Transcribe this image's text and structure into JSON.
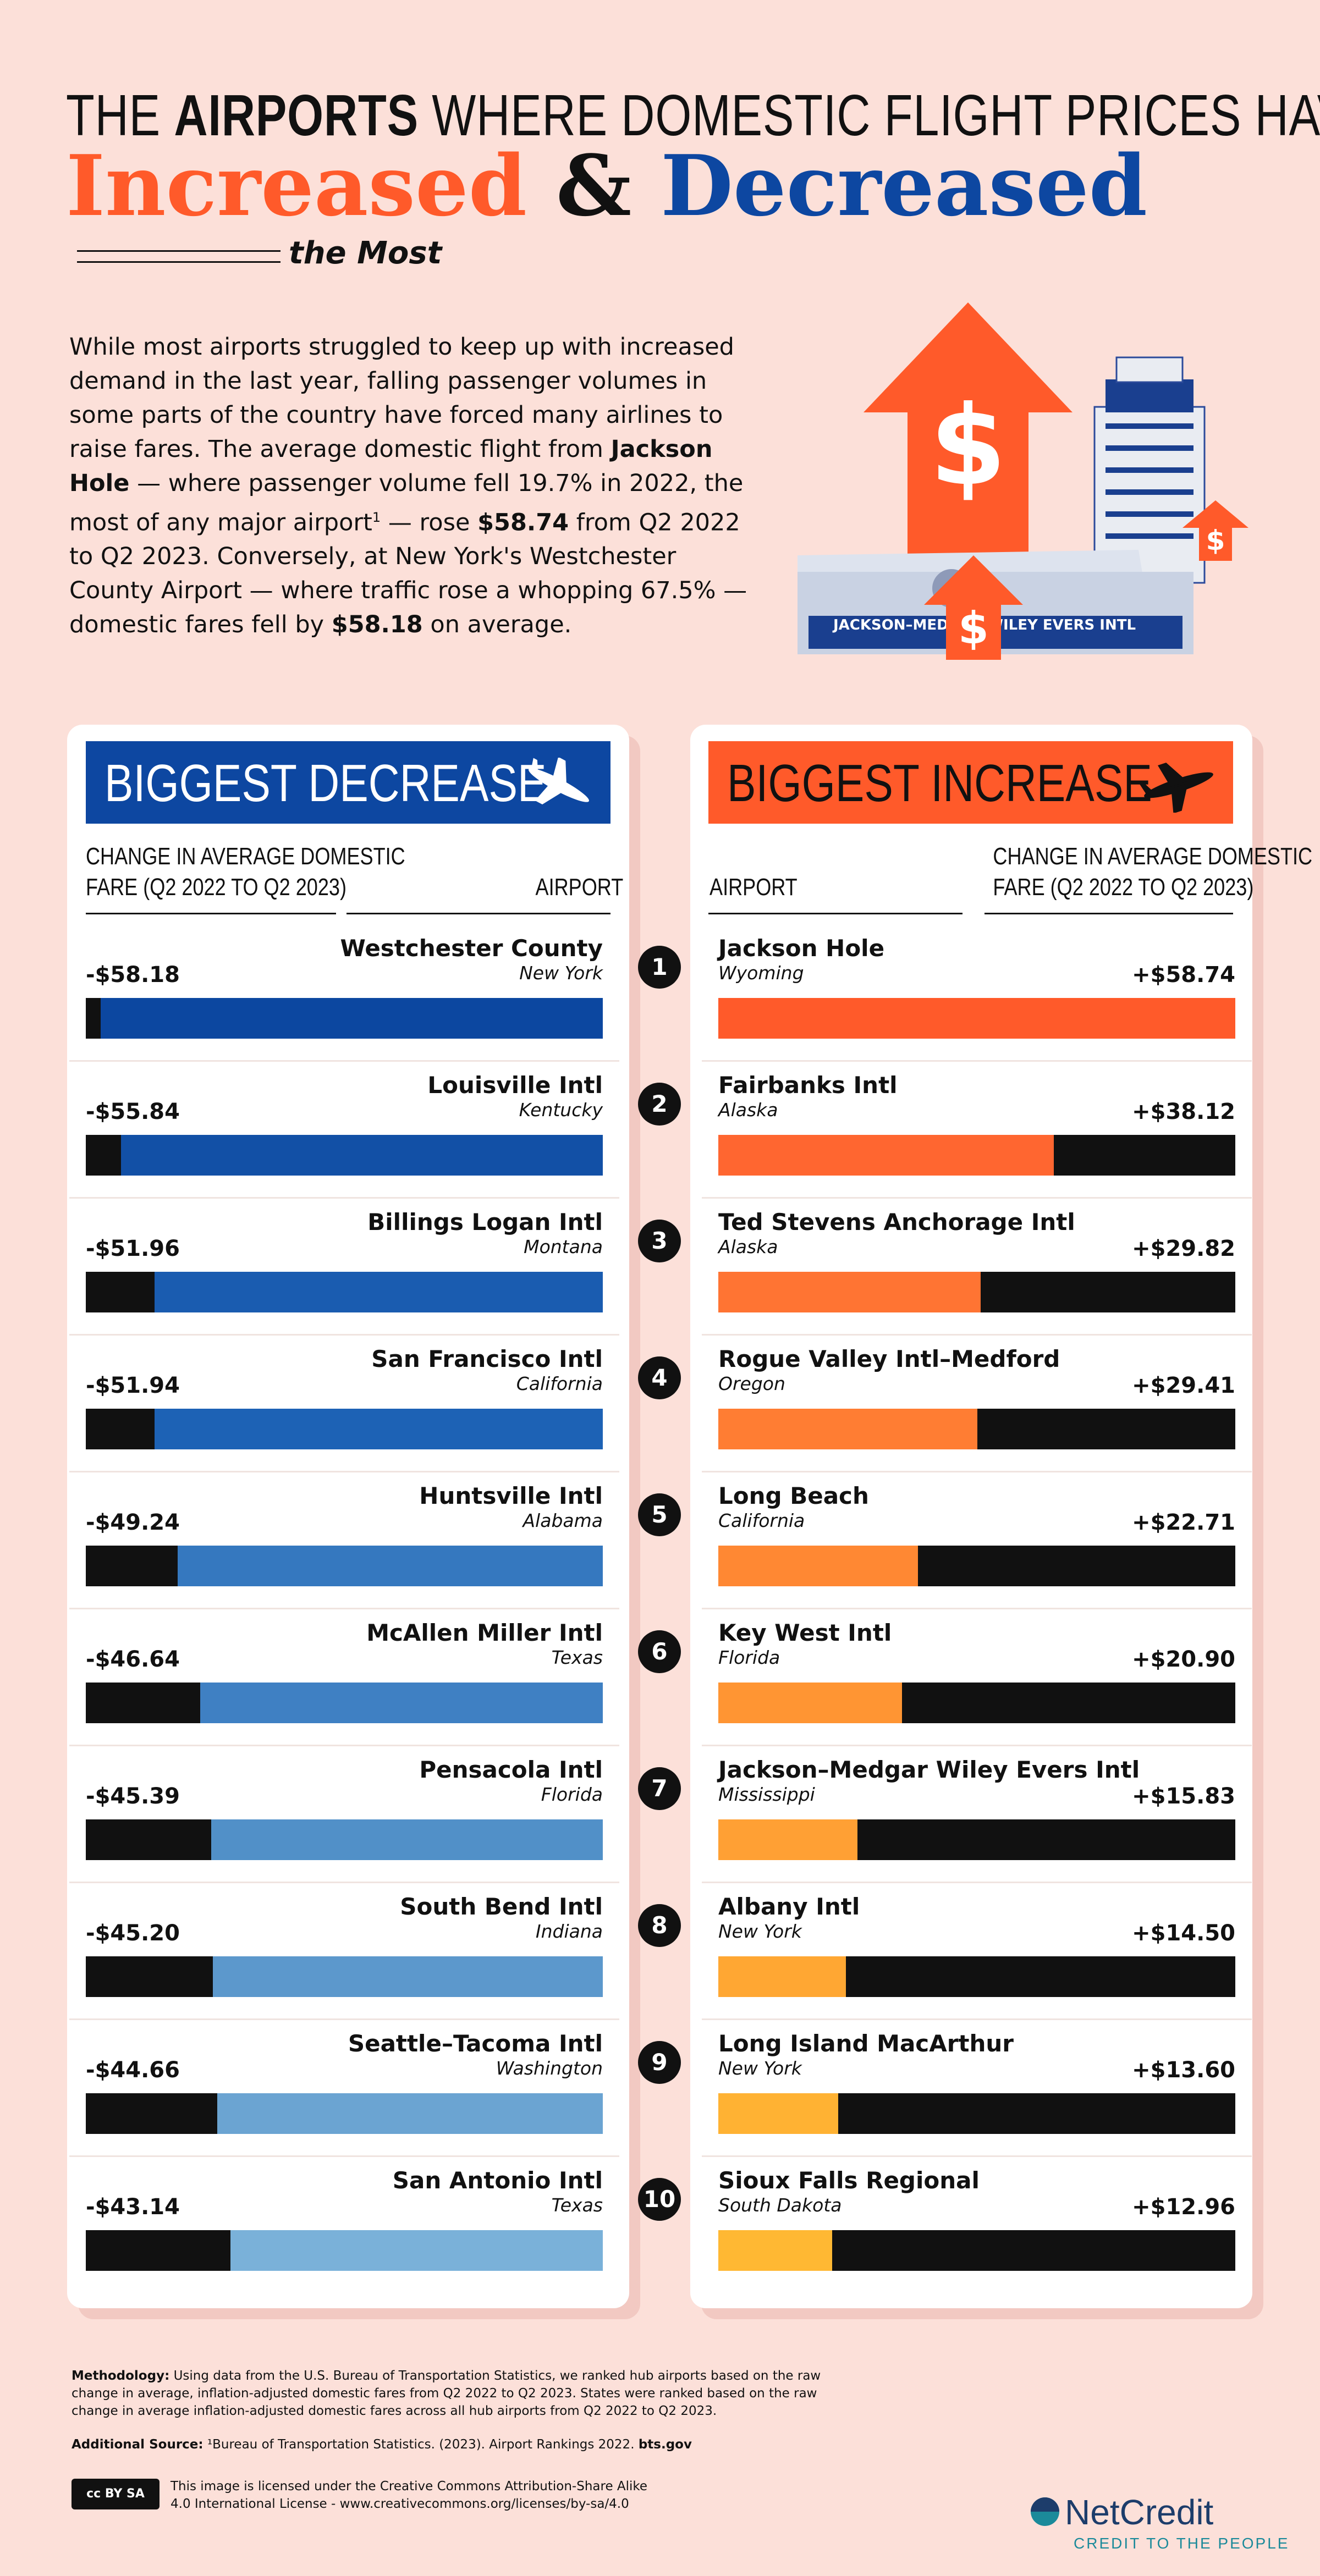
{
  "header": {
    "line1_pre": "THE ",
    "line1_bold": "AIRPORTS",
    "line1_post": " WHERE DOMESTIC FLIGHT PRICES HAVE",
    "increased": "Increased",
    "amp": " & ",
    "decreased": "Decreased",
    "the_most": "the Most"
  },
  "intro": {
    "p1": "While most airports struggled to keep up with increased demand in the last year, falling passenger volumes in some parts of the country have forced many airlines to raise fares. The average domestic flight from ",
    "bold1": "Jackson Hole",
    "p2": " — where passenger volume fell 19.7% in 2022, the most of any major airport",
    "sup": "1",
    "p3": " — rose ",
    "bold2": "$58.74",
    "p4": " from Q2 2022 to Q2 2023. Conversely, at New York's Westchester County Airport — where traffic rose a whopping 67.5% — domestic fares fell by ",
    "bold3": "$58.18",
    "p5": " on average."
  },
  "illustration": {
    "dollar": "$",
    "sign_text": "JACKSON–MEDGAR WILEY EVERS INTL"
  },
  "decrease": {
    "title": "BIGGEST DECREASE",
    "col_change_1": "CHANGE IN AVERAGE DOMESTIC",
    "col_change_2": "FARE (Q2 2022 TO Q2 2023)",
    "col_airport": "AIRPORT"
  },
  "increase": {
    "title": "BIGGEST INCREASE",
    "col_change_1": "CHANGE IN AVERAGE DOMESTIC",
    "col_change_2": "FARE (Q2 2022 TO Q2 2023)",
    "col_airport": "AIRPORT"
  },
  "colors": {
    "blue": "#0d47a1",
    "orange": "#ff5a2a",
    "black": "#111111",
    "dec_bars": [
      "#0c47a0",
      "#1250a6",
      "#1a5cb0",
      "#1d62b5",
      "#3578bf",
      "#3f80c3",
      "#5190c8",
      "#5c98cc",
      "#6ba4d2",
      "#7ab1d9"
    ],
    "inc_bars": [
      "#ff5a2a",
      "#ff6630",
      "#ff7433",
      "#ff7d33",
      "#ff8833",
      "#ff9533",
      "#ffa034",
      "#ffa733",
      "#ffb233",
      "#ffb833"
    ]
  },
  "chart_data": [
    {
      "type": "bar",
      "title": "BIGGEST DECREASE",
      "ylabel": "Change in average domestic fare (Q2 2022 to Q2 2023)",
      "categories": [
        "Westchester County",
        "Louisville Intl",
        "Billings Logan Intl",
        "San Francisco Intl",
        "Huntsville Intl",
        "McAllen Miller Intl",
        "Pensacola Intl",
        "South Bend Intl",
        "Seattle–Tacoma Intl",
        "San Antonio Intl"
      ],
      "states": [
        "New York",
        "Kentucky",
        "Montana",
        "California",
        "Alabama",
        "Texas",
        "Florida",
        "Indiana",
        "Washington",
        "Texas"
      ],
      "values": [
        -58.18,
        -55.84,
        -51.96,
        -51.94,
        -49.24,
        -46.64,
        -45.39,
        -45.2,
        -44.66,
        -43.14
      ],
      "labels": [
        "-$58.18",
        "-$55.84",
        "-$51.96",
        "-$51.94",
        "-$49.24",
        "-$46.64",
        "-$45.39",
        "-$45.20",
        "-$44.66",
        "-$43.14"
      ],
      "ylim": [
        -59,
        0
      ]
    },
    {
      "type": "bar",
      "title": "BIGGEST INCREASE",
      "ylabel": "Change in average domestic fare (Q2 2022 to Q2 2023)",
      "categories": [
        "Jackson Hole",
        "Fairbanks Intl",
        "Ted Stevens Anchorage Intl",
        "Rogue Valley Intl–Medford",
        "Long Beach",
        "Key West Intl",
        "Jackson–Medgar Wiley Evers Intl",
        "Albany Intl",
        "Long Island MacArthur",
        "Sioux Falls Regional"
      ],
      "states": [
        "Wyoming",
        "Alaska",
        "Alaska",
        "Oregon",
        "California",
        "Florida",
        "Mississippi",
        "New York",
        "New York",
        "South Dakota"
      ],
      "values": [
        58.74,
        38.12,
        29.82,
        29.41,
        22.71,
        20.9,
        15.83,
        14.5,
        13.6,
        12.96
      ],
      "labels": [
        "+$58.74",
        "+$38.12",
        "+$29.82",
        "+$29.41",
        "+$22.71",
        "+$20.90",
        "+$15.83",
        "+$14.50",
        "+$13.60",
        "+$12.96"
      ],
      "ylim": [
        0,
        58.74
      ]
    }
  ],
  "ranks": [
    "1",
    "2",
    "3",
    "4",
    "5",
    "6",
    "7",
    "8",
    "9",
    "10"
  ],
  "footer": {
    "method_label": "Methodology:",
    "method_text": " Using data from the U.S. Bureau of Transportation Statistics, we ranked hub airports based on the raw change in average, inflation-adjusted domestic fares from Q2 2022 to Q2 2023. States were ranked based on the raw change in average inflation-adjusted domestic fares across all hub airports from Q2 2022 to Q2 2023.",
    "source_label": "Additional Source:",
    "source_text": " ¹Bureau of Transportation Statistics. (2023). Airport Rankings 2022. ",
    "source_link": "bts.gov",
    "license_1": "This image is licensed under the Creative Commons Attribution-Share Alike",
    "license_2": "4.0 International License - www.creativecommons.org/licenses/by-sa/4.0",
    "cc_badge": "cc BY SA",
    "brand": "NetCredit",
    "tagline": "CREDIT TO THE PEOPLE"
  }
}
